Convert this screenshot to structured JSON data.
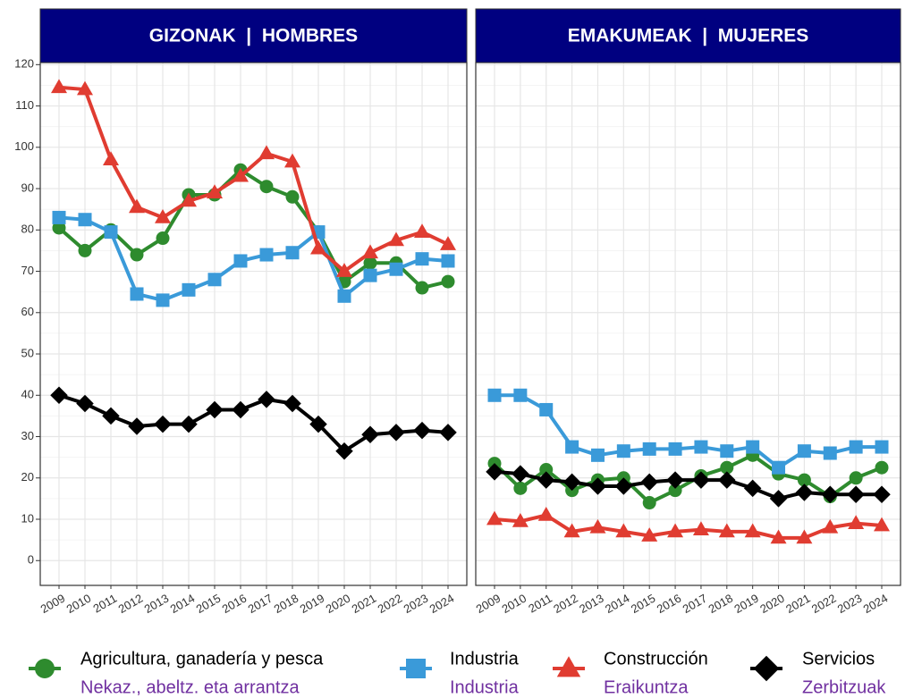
{
  "chart_data": [
    {
      "type": "line",
      "title": "GIZONAK  |  HOMBRES",
      "x": [
        "2009",
        "2010",
        "2011",
        "2012",
        "2013",
        "2014",
        "2015",
        "2016",
        "2017",
        "2018",
        "2019",
        "2020",
        "2021",
        "2022",
        "2023",
        "2024"
      ],
      "ylim": [
        -6,
        120.5
      ],
      "yticks": [
        0,
        10,
        20,
        30,
        40,
        50,
        60,
        70,
        80,
        90,
        100,
        110,
        120
      ],
      "grid": true,
      "series": [
        {
          "name": "Agricultura, ganadería y pesca",
          "name_eu": "Nekaz., abeltz. eta arrantza",
          "color": "#2e8b2e",
          "marker": "circle",
          "values": [
            80.5,
            75,
            80,
            74,
            78,
            88.5,
            88.5,
            94.5,
            90.5,
            88,
            79.5,
            67.5,
            72,
            72,
            66,
            67.5
          ]
        },
        {
          "name": "Industria",
          "name_eu": "Industria",
          "color": "#3a9ad9",
          "marker": "square",
          "values": [
            83,
            82.5,
            79.5,
            64.5,
            63,
            65.5,
            68,
            72.5,
            74,
            74.5,
            79.5,
            64,
            69,
            70.5,
            73,
            72.5
          ]
        },
        {
          "name": "Construcción",
          "name_eu": "Eraikuntza",
          "color": "#e03c31",
          "marker": "triangle",
          "values": [
            114.5,
            114,
            97,
            85.5,
            83,
            87,
            89,
            93,
            98.5,
            96.5,
            75.5,
            70,
            74.5,
            77.5,
            79.5,
            76.5
          ]
        },
        {
          "name": "Servicios",
          "name_eu": "Zerbitzuak",
          "color": "#000000",
          "marker": "diamond",
          "values": [
            40,
            38,
            35,
            32.5,
            33,
            33,
            36.5,
            36.5,
            39,
            38,
            33,
            26.5,
            30.5,
            31,
            31.5,
            31
          ]
        }
      ]
    },
    {
      "type": "line",
      "title": "EMAKUMEAK  |  MUJERES",
      "x": [
        "2009",
        "2010",
        "2011",
        "2012",
        "2013",
        "2014",
        "2015",
        "2016",
        "2017",
        "2018",
        "2019",
        "2020",
        "2021",
        "2022",
        "2023",
        "2024"
      ],
      "ylim": [
        -6,
        120.5
      ],
      "yticks": [
        0,
        10,
        20,
        30,
        40,
        50,
        60,
        70,
        80,
        90,
        100,
        110,
        120
      ],
      "grid": true,
      "series": [
        {
          "name": "Agricultura, ganadería y pesca",
          "color": "#2e8b2e",
          "marker": "circle",
          "values": [
            23.5,
            17.5,
            22,
            17,
            19.5,
            20,
            14,
            17,
            20.5,
            22.5,
            25.5,
            21,
            19.5,
            15.5,
            20,
            22.5
          ]
        },
        {
          "name": "Industria",
          "color": "#3a9ad9",
          "marker": "square",
          "values": [
            40,
            40,
            36.5,
            27.5,
            25.5,
            26.5,
            27,
            27,
            27.5,
            26.5,
            27.5,
            22.5,
            26.5,
            26,
            27.5,
            27.5
          ]
        },
        {
          "name": "Construcción",
          "color": "#e03c31",
          "marker": "triangle",
          "values": [
            10,
            9.5,
            11,
            7,
            8,
            7,
            6,
            7,
            7.5,
            7,
            7,
            5.5,
            5.5,
            8,
            9,
            8.5
          ]
        },
        {
          "name": "Servicios",
          "color": "#000000",
          "marker": "diamond",
          "values": [
            21.5,
            21,
            19.5,
            19,
            18,
            18,
            19,
            19.5,
            19.5,
            19.5,
            17.5,
            15,
            16.5,
            16,
            16,
            16
          ]
        }
      ]
    }
  ]
}
